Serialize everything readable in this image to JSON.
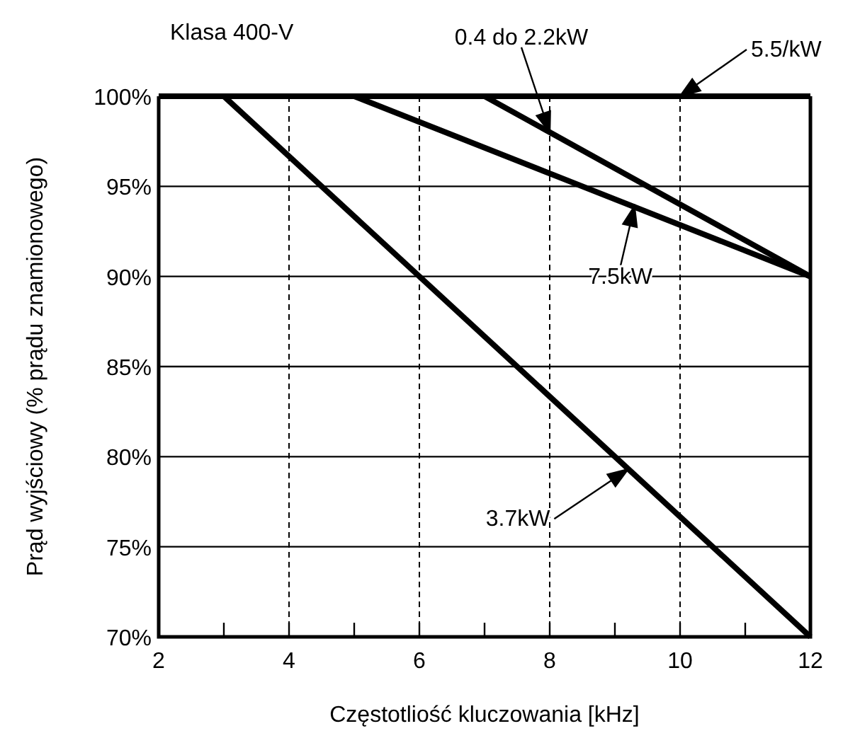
{
  "chart_data": {
    "type": "line",
    "xlabel": "Częstotliość kluczowania [kHz]",
    "ylabel": "Prąd wyjściowy (% prądu znamionowego)",
    "xlim": [
      2,
      12
    ],
    "ylim": [
      70,
      100
    ],
    "xticks": [
      2,
      {
        "value": 3,
        "label": null
      },
      4,
      {
        "value": 5,
        "label": null
      },
      6,
      {
        "value": 7,
        "label": null
      },
      8,
      {
        "value": 9,
        "label": null
      },
      10,
      {
        "value": 11,
        "label": null
      },
      12
    ],
    "yticks": [
      {
        "value": 70,
        "label": "70%"
      },
      {
        "value": 75,
        "label": "75%"
      },
      {
        "value": 80,
        "label": "80%"
      },
      {
        "value": 85,
        "label": "85%"
      },
      {
        "value": 90,
        "label": "90%"
      },
      {
        "value": 95,
        "label": "95%"
      },
      {
        "value": 100,
        "label": "100%"
      }
    ],
    "grid": true,
    "series": [
      {
        "color": "#000000",
        "x": [
          2,
          12
        ],
        "values": [
          100,
          100
        ]
      },
      {
        "color": "#000000",
        "x": [
          7,
          12
        ],
        "values": [
          100,
          90
        ]
      },
      {
        "color": "#000000",
        "x": [
          5,
          12
        ],
        "values": [
          100,
          90
        ]
      },
      {
        "color": "#000000",
        "x": [
          3,
          12
        ],
        "values": [
          100,
          70
        ]
      }
    ],
    "annotations": [
      "Klasa 400-V",
      {
        "text": "0.4 do 2.2kW",
        "x": 8,
        "y": 98
      },
      {
        "text": "5.5/kW",
        "x": 10,
        "y": 100
      },
      {
        "text": "7.5kW",
        "x": 9.3,
        "y": 93.9
      },
      {
        "text": "3.7kW",
        "x": 9.2,
        "y": 79.3
      }
    ]
  }
}
